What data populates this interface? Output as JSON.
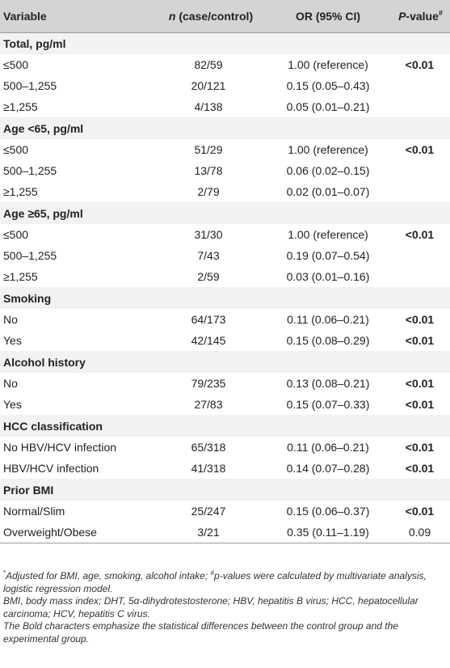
{
  "table": {
    "headers": {
      "variable": "Variable",
      "n_italic": "n",
      "n_rest": "(case/control)",
      "or": "OR (95% CI)",
      "p_italic": "P",
      "p_rest": "-value",
      "p_sup": "#"
    },
    "rows": [
      {
        "type": "section",
        "variable": "Total, pg/ml"
      },
      {
        "type": "data",
        "variable": "≤500",
        "n": "82/59",
        "or": "1.00 (reference)",
        "p": "<0.01",
        "p_bold": true
      },
      {
        "type": "data",
        "variable": "500–1,255",
        "n": "20/121",
        "or": "0.15 (0.05–0.43)",
        "p": "",
        "p_bold": true
      },
      {
        "type": "data",
        "variable": "≥1,255",
        "n": "4/138",
        "or": "0.05 (0.01–0.21)",
        "p": "",
        "p_bold": true
      },
      {
        "type": "section",
        "variable": "Age <65, pg/ml"
      },
      {
        "type": "data",
        "variable": "≤500",
        "n": "51/29",
        "or": "1.00 (reference)",
        "p": "<0.01",
        "p_bold": true
      },
      {
        "type": "data",
        "variable": "500–1,255",
        "n": "13/78",
        "or": "0.06 (0.02–0.15)",
        "p": "",
        "p_bold": true
      },
      {
        "type": "data",
        "variable": "≥1,255",
        "n": "2/79",
        "or": "0.02 (0.01–0.07)",
        "p": "",
        "p_bold": true
      },
      {
        "type": "section",
        "variable": "Age ≥65, pg/ml"
      },
      {
        "type": "data",
        "variable": "≤500",
        "n": "31/30",
        "or": "1.00 (reference)",
        "p": "<0.01",
        "p_bold": true
      },
      {
        "type": "data",
        "variable": "500–1,255",
        "n": "7/43",
        "or": "0.19 (0.07–0.54)",
        "p": "",
        "p_bold": true
      },
      {
        "type": "data",
        "variable": "≥1,255",
        "n": "2/59",
        "or": "0.03 (0.01–0.16)",
        "p": "",
        "p_bold": true
      },
      {
        "type": "section",
        "variable": "Smoking"
      },
      {
        "type": "data",
        "variable": "No",
        "n": "64/173",
        "or": "0.11 (0.06–0.21)",
        "p": "<0.01",
        "p_bold": true
      },
      {
        "type": "data",
        "variable": "Yes",
        "n": "42/145",
        "or": "0.15 (0.08–0.29)",
        "p": "<0.01",
        "p_bold": true
      },
      {
        "type": "section",
        "variable": "Alcohol history"
      },
      {
        "type": "data",
        "variable": "No",
        "n": "79/235",
        "or": "0.13 (0.08–0.21)",
        "p": "<0.01",
        "p_bold": true
      },
      {
        "type": "data",
        "variable": "Yes",
        "n": "27/83",
        "or": "0.15 (0.07–0.33)",
        "p": "<0.01",
        "p_bold": true
      },
      {
        "type": "section",
        "variable": "HCC classification"
      },
      {
        "type": "data",
        "variable": "No HBV/HCV infection",
        "n": "65/318",
        "or": "0.11 (0.06–0.21)",
        "p": "<0.01",
        "p_bold": true
      },
      {
        "type": "data",
        "variable": "HBV/HCV infection",
        "n": "41/318",
        "or": "0.14 (0.07–0.28)",
        "p": "<0.01",
        "p_bold": true
      },
      {
        "type": "section",
        "variable": "Prior BMI"
      },
      {
        "type": "data",
        "variable": "Normal/Slim",
        "n": "25/247",
        "or": "0.15 (0.06–0.37)",
        "p": "<0.01",
        "p_bold": true
      },
      {
        "type": "data",
        "variable": "Overweight/Obese",
        "n": "3/21",
        "or": "0.35 (0.11–1.19)",
        "p": "0.09",
        "p_bold": false
      }
    ]
  },
  "footnotes": {
    "n1_sup": "*",
    "n1_a": "Adjusted for BMI, age, smoking, alcohol intake; ",
    "n1_sup2": "#",
    "n1_b": "p-values were calculated by multivariate analysis, logistic regression model.",
    "n2": "BMI, body mass index; DHT, 5α-dihydrotestosterone; HBV, hepatitis B virus; HCC, hepatocellular carcinoma; HCV, hepatitis C virus.",
    "n3": "The Bold characters emphasize the statistical differences between the control group and the experimental group."
  }
}
